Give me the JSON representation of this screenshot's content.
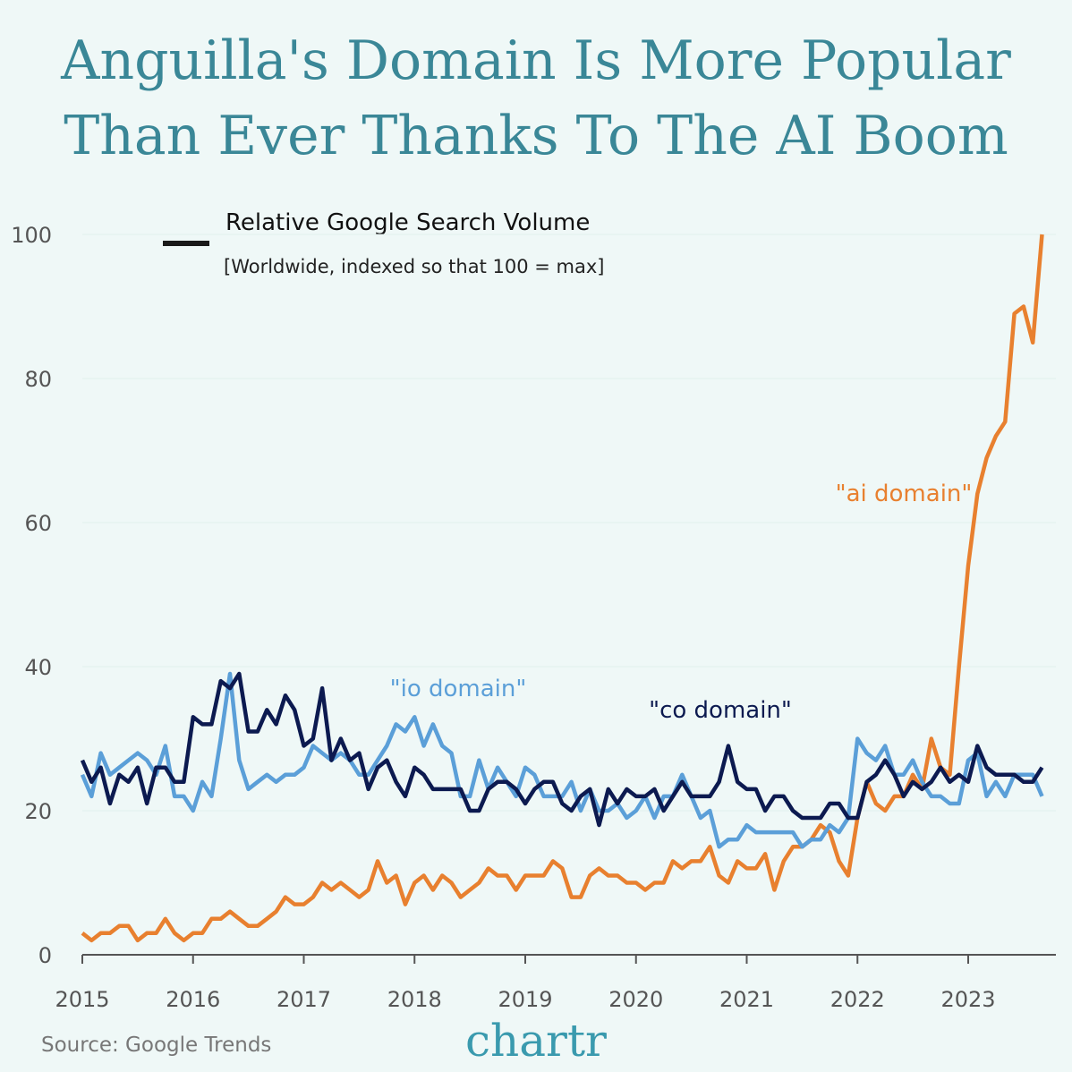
{
  "chart_data": {
    "type": "line",
    "title": [
      "Anguilla's Domain Is More Popular",
      "Than Ever Thanks To The AI Boom"
    ],
    "legend_title": "Relative Google Search Volume",
    "legend_note": "[Worldwide, indexed so that 100 = max]",
    "source": "Source: Google Trends",
    "logo": "chartr",
    "categories": [
      "2015",
      null,
      null,
      null,
      null,
      null,
      null,
      null,
      null,
      null,
      null,
      null,
      "2016",
      null,
      null,
      null,
      null,
      null,
      null,
      null,
      null,
      null,
      null,
      null,
      "2017",
      null,
      null,
      null,
      null,
      null,
      null,
      null,
      null,
      null,
      null,
      null,
      "2018",
      null,
      null,
      null,
      null,
      null,
      null,
      null,
      null,
      null,
      null,
      null,
      "2019",
      null,
      null,
      null,
      null,
      null,
      null,
      null,
      null,
      null,
      null,
      null,
      "2020",
      null,
      null,
      null,
      null,
      null,
      null,
      null,
      null,
      null,
      null,
      null,
      "2021",
      null,
      null,
      null,
      null,
      null,
      null,
      null,
      null,
      null,
      null,
      null,
      "2022",
      null,
      null,
      null,
      null,
      null,
      null,
      null,
      null,
      null,
      null,
      null,
      "2023",
      null,
      null,
      null,
      null,
      null,
      null,
      null,
      null
    ],
    "series": [
      {
        "name": "\"ai domain\"",
        "color": "#e8802f",
        "values": [
          3,
          2,
          3,
          3,
          4,
          4,
          2,
          3,
          3,
          5,
          3,
          2,
          3,
          3,
          5,
          5,
          6,
          5,
          4,
          4,
          5,
          6,
          8,
          7,
          7,
          8,
          10,
          9,
          10,
          9,
          8,
          9,
          13,
          10,
          11,
          7,
          10,
          11,
          9,
          11,
          10,
          8,
          9,
          10,
          12,
          11,
          11,
          9,
          11,
          11,
          11,
          13,
          12,
          8,
          8,
          11,
          12,
          11,
          11,
          10,
          10,
          9,
          10,
          10,
          13,
          12,
          13,
          13,
          15,
          11,
          10,
          13,
          12,
          12,
          14,
          9,
          13,
          15,
          15,
          16,
          18,
          17,
          13,
          11,
          19,
          24,
          21,
          20,
          22,
          22,
          25,
          23,
          30,
          26,
          25,
          40,
          54,
          64,
          69,
          72,
          74,
          89,
          90,
          85,
          100
        ]
      },
      {
        "name": "\"io domain\"",
        "color": "#5b9fd8",
        "values": [
          25,
          22,
          28,
          25,
          26,
          27,
          28,
          27,
          25,
          29,
          22,
          22,
          20,
          24,
          22,
          30,
          39,
          27,
          23,
          24,
          25,
          24,
          25,
          25,
          26,
          29,
          28,
          27,
          28,
          27,
          25,
          25,
          27,
          29,
          32,
          31,
          33,
          29,
          32,
          29,
          28,
          22,
          22,
          27,
          23,
          26,
          24,
          22,
          26,
          25,
          22,
          22,
          22,
          24,
          20,
          23,
          20,
          20,
          21,
          19,
          20,
          22,
          19,
          22,
          22,
          25,
          22,
          19,
          20,
          15,
          16,
          16,
          18,
          17,
          17,
          17,
          17,
          17,
          15,
          16,
          16,
          18,
          17,
          19,
          30,
          28,
          27,
          29,
          25,
          25,
          27,
          24,
          22,
          22,
          21,
          21,
          27,
          28,
          22,
          24,
          22,
          25,
          25,
          25,
          22
        ]
      },
      {
        "name": "\"co domain\"",
        "color": "#0c1a50",
        "values": [
          27,
          24,
          26,
          21,
          25,
          24,
          26,
          21,
          26,
          26,
          24,
          24,
          33,
          32,
          32,
          38,
          37,
          39,
          31,
          31,
          34,
          32,
          36,
          34,
          29,
          30,
          37,
          27,
          30,
          27,
          28,
          23,
          26,
          27,
          24,
          22,
          26,
          25,
          23,
          23,
          23,
          23,
          20,
          20,
          23,
          24,
          24,
          23,
          21,
          23,
          24,
          24,
          21,
          20,
          22,
          23,
          18,
          23,
          21,
          23,
          22,
          22,
          23,
          20,
          22,
          24,
          22,
          22,
          22,
          24,
          29,
          24,
          23,
          23,
          20,
          22,
          22,
          20,
          19,
          19,
          19,
          21,
          21,
          19,
          19,
          24,
          25,
          27,
          25,
          22,
          24,
          23,
          24,
          26,
          24,
          25,
          24,
          29,
          26,
          25,
          25,
          25,
          24,
          24,
          26
        ]
      }
    ],
    "ylim": [
      0,
      100
    ],
    "yticks": [
      0,
      20,
      40,
      60,
      80,
      100
    ],
    "grid": true
  }
}
